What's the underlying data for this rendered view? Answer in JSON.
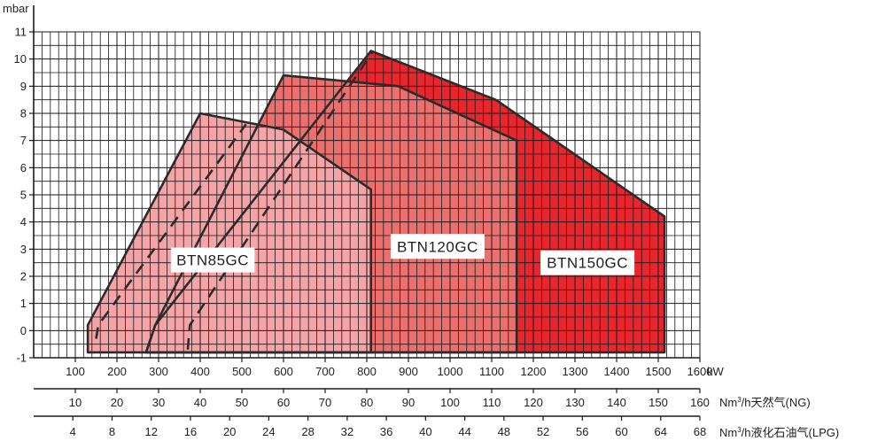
{
  "chart_data": {
    "type": "area",
    "title": "",
    "ylabel": "mbar",
    "ylim": [
      -1,
      11
    ],
    "yticks": [
      "-1",
      "0",
      "1",
      "2",
      "3",
      "4",
      "5",
      "6",
      "7",
      "8",
      "9",
      "10",
      "11"
    ],
    "xlim": [
      0,
      1600
    ],
    "grid": true,
    "axes": [
      {
        "unit": "kW",
        "ticks": [
          "100",
          "200",
          "300",
          "400",
          "500",
          "600",
          "700",
          "800",
          "900",
          "1000",
          "1100",
          "1200",
          "1300",
          "1400",
          "1500",
          "1600"
        ]
      },
      {
        "unit_prefix": "Nm",
        "unit_sup": "3",
        "unit_suffix": "/h天然气(NG)",
        "ticks": [
          "10",
          "20",
          "30",
          "40",
          "50",
          "60",
          "70",
          "80",
          "90",
          "100",
          "110",
          "120",
          "130",
          "140",
          "150",
          "160"
        ]
      },
      {
        "unit_prefix": "Nm",
        "unit_sup": "3",
        "unit_suffix": "/h液化石油气(LPG)",
        "ticks": [
          "4",
          "8",
          "12",
          "16",
          "20",
          "24",
          "28",
          "32",
          "36",
          "40",
          "44",
          "48",
          "52",
          "56",
          "60",
          "64",
          "68"
        ]
      }
    ],
    "series": [
      {
        "name": "BTN150GC",
        "color": "#e8262d",
        "points": [
          [
            270,
            -0.8
          ],
          [
            292,
            0.2
          ],
          [
            810,
            10.3
          ],
          [
            1110,
            8.5
          ],
          [
            1515,
            4.2
          ],
          [
            1515,
            -0.8
          ]
        ]
      },
      {
        "name": "BTN120GC",
        "color": "#eb6f6d",
        "points": [
          [
            270,
            -0.8
          ],
          [
            292,
            0.2
          ],
          [
            600,
            9.4
          ],
          [
            875,
            9.0
          ],
          [
            1160,
            7.0
          ],
          [
            1160,
            -0.8
          ]
        ]
      },
      {
        "name": "BTN85GC",
        "color": "#f4a3a6",
        "points": [
          [
            130,
            -0.8
          ],
          [
            130,
            0.2
          ],
          [
            400,
            8.0
          ],
          [
            600,
            7.4
          ],
          [
            810,
            5.2
          ],
          [
            810,
            -0.8
          ]
        ]
      }
    ],
    "dashed_lines": [
      {
        "points": [
          [
            150,
            -0.3
          ],
          [
            155,
            0.2
          ],
          [
            510,
            7.6
          ]
        ]
      },
      {
        "points": [
          [
            370,
            -0.7
          ],
          [
            375,
            0.2
          ],
          [
            815,
            10.3
          ]
        ]
      }
    ],
    "labels": [
      {
        "series": "BTN85GC",
        "text": "BTN85GC",
        "x": 430,
        "y": 2.6
      },
      {
        "series": "BTN120GC",
        "text": "BTN120GC",
        "x": 970,
        "y": 3.1
      },
      {
        "series": "BTN150GC",
        "text": "BTN150GC",
        "x": 1330,
        "y": 2.5
      }
    ]
  }
}
